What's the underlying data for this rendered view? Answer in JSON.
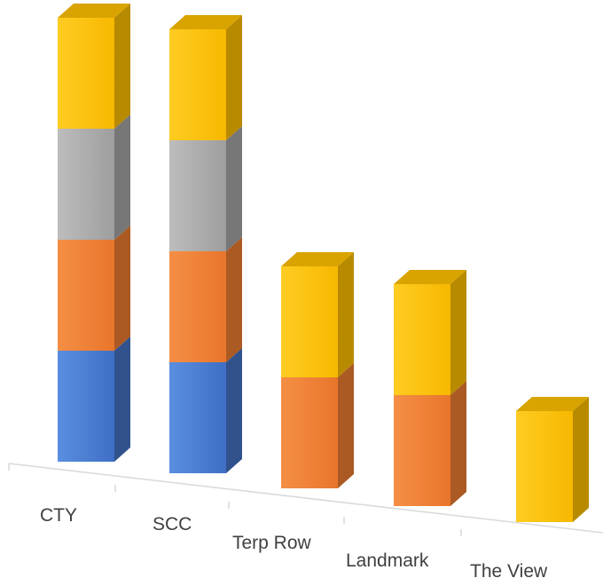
{
  "chart_data": {
    "type": "bar",
    "stacked": true,
    "three_d": true,
    "title": "",
    "xlabel": "",
    "ylabel": "",
    "legend": "none",
    "grid": false,
    "categories": [
      "CTY",
      "SCC",
      "Terp Row",
      "Landmark",
      "The View"
    ],
    "series": [
      {
        "color": "#4472C4",
        "values": [
          1,
          1,
          0,
          0,
          0
        ]
      },
      {
        "color": "#ED7D31",
        "values": [
          1,
          1,
          1,
          1,
          0
        ]
      },
      {
        "color": "#A5A5A5",
        "values": [
          1,
          1,
          0,
          0,
          0
        ]
      },
      {
        "color": "#FFC000",
        "values": [
          1,
          1,
          1,
          1,
          1
        ]
      }
    ],
    "ylim": [
      0,
      4
    ]
  }
}
